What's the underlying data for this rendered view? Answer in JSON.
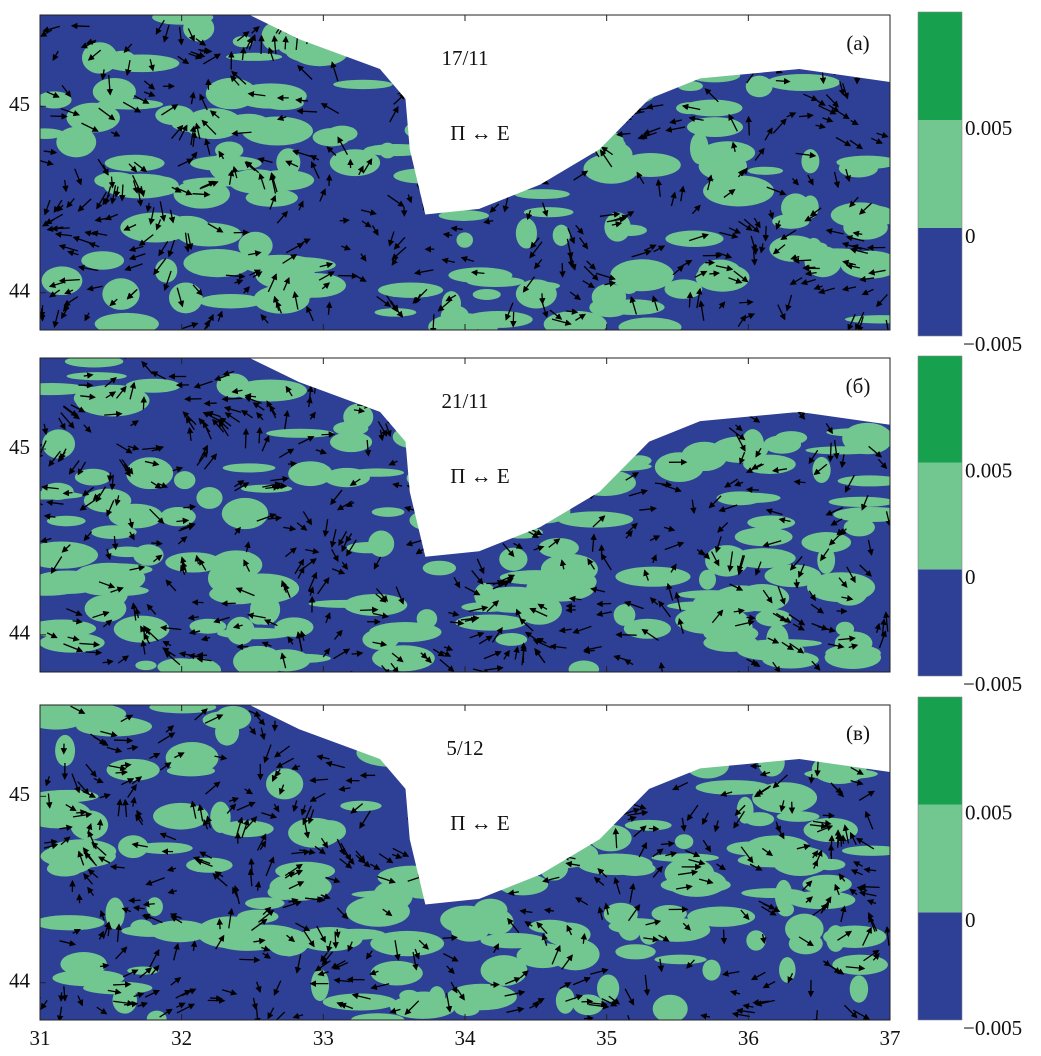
{
  "chart_data": [
    {
      "type": "quiver",
      "title": "17/11",
      "panel_label": "(а)",
      "annotation": "П ↔ E",
      "xlim": [
        31,
        37
      ],
      "xticks": [
        31,
        32,
        33,
        34,
        35,
        36,
        37
      ],
      "show_xtick_labels": false,
      "ylim": [
        43.8,
        45.49
      ],
      "yticks": [
        44,
        45
      ],
      "colorbar_lim": [
        -0.005,
        0.01
      ],
      "colorbar_ticks": [
        {
          "value": -0.005,
          "label": "−0.005"
        },
        0,
        0.005
      ],
      "colorbar_colors": [
        "#2e3f96",
        "#72c690",
        "#17a04e"
      ]
    },
    {
      "type": "quiver",
      "title": "21/11",
      "panel_label": "(б)",
      "annotation": "П ↔ E",
      "xlim": [
        31,
        37
      ],
      "xticks": [
        31,
        32,
        33,
        34,
        35,
        36,
        37
      ],
      "show_xtick_labels": false,
      "ylim": [
        43.8,
        45.49
      ],
      "yticks": [
        44,
        45
      ],
      "colorbar_lim": [
        -0.005,
        0.01
      ],
      "colorbar_ticks": [
        {
          "value": -0.005,
          "label": "−0.005"
        },
        0,
        0.005
      ],
      "colorbar_colors": [
        "#2e3f96",
        "#72c690",
        "#17a04e"
      ]
    },
    {
      "type": "quiver",
      "title": "5/12",
      "panel_label": "(в)",
      "annotation": "П ↔ E",
      "xlim": [
        31,
        37
      ],
      "xticks": [
        31,
        32,
        33,
        34,
        35,
        36,
        37
      ],
      "show_xtick_labels": true,
      "ylim": [
        43.8,
        45.49
      ],
      "yticks": [
        44,
        45
      ],
      "colorbar_lim": [
        -0.005,
        0.01
      ],
      "colorbar_ticks": [
        {
          "value": -0.005,
          "label": "−0.005"
        },
        0,
        0.005
      ],
      "colorbar_colors": [
        "#2e3f96",
        "#72c690",
        "#17a04e"
      ]
    }
  ]
}
